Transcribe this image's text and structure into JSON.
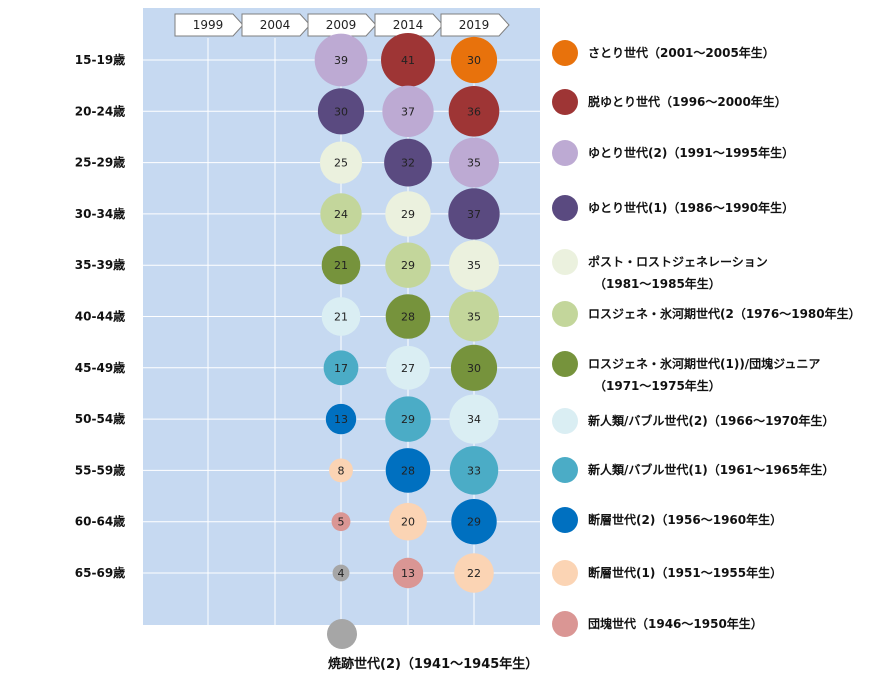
{
  "chart_data": {
    "type": "bubble",
    "x_categories": [
      "1999",
      "2004",
      "2009",
      "2014",
      "2019"
    ],
    "y_categories": [
      "15-19歳",
      "20-24歳",
      "25-29歳",
      "30-34歳",
      "35-39歳",
      "40-44歳",
      "45-49歳",
      "50-54歳",
      "55-59歳",
      "60-64歳",
      "65-69歳"
    ],
    "generations": [
      {
        "name": "さとり世代（2001～2005年生）",
        "lines": [
          "さとり世代（2001～2005年生）"
        ],
        "color": "#E8720C"
      },
      {
        "name": "脱ゆとり世代（1996～2000年生）",
        "lines": [
          "脱ゆとり世代（1996～2000年生）"
        ],
        "color": "#9E3535"
      },
      {
        "name": "ゆとり世代(2)（1991～1995年生）",
        "lines": [
          "ゆとり世代(2)（1991～1995年生）"
        ],
        "color": "#BDAAD3"
      },
      {
        "name": "ゆとり世代(1)（1986～1990年生）",
        "lines": [
          "ゆとり世代(1)（1986～1990年生）"
        ],
        "color": "#5A4A80"
      },
      {
        "name": "ポスト・ロストジェネレーション（1981～1985年生）",
        "lines": [
          "ポスト・ロストジェネレーション",
          "（1981～1985年生）"
        ],
        "color": "#EBF1DE"
      },
      {
        "name": "ロスジェネ・氷河期世代(2（1976～1980年生）",
        "lines": [
          "ロスジェネ・氷河期世代(2（1976～1980年生）"
        ],
        "color": "#C3D69B"
      },
      {
        "name": "ロスジェネ・氷河期世代(1))/団塊ジュニア（1971～1975年生）",
        "lines": [
          "ロスジェネ・氷河期世代(1))/団塊ジュニア",
          "（1971～1975年生）"
        ],
        "color": "#76933C"
      },
      {
        "name": "新人類/バブル世代(2)（1966～1970年生）",
        "lines": [
          "新人類/バブル世代(2)（1966～1970年生）"
        ],
        "color": "#DAEEF3"
      },
      {
        "name": "新人類/バブル世代(1)（1961～1965年生）",
        "lines": [
          "新人類/バブル世代(1)（1961～1965年生）"
        ],
        "color": "#4BACC6"
      },
      {
        "name": "断層世代(2)（1956～1960年生）",
        "lines": [
          "断層世代(2)（1956～1960年生）"
        ],
        "color": "#0070C0"
      },
      {
        "name": "断層世代(1)（1951～1955年生）",
        "lines": [
          "断層世代(1)（1951～1955年生）"
        ],
        "color": "#FBD4B4"
      },
      {
        "name": "団塊世代（1946～1950年生）",
        "lines": [
          "団塊世代（1946～1950年生）"
        ],
        "color": "#DA9694"
      },
      {
        "name": "焼跡世代(2)（1941～1945年生）",
        "lines": [
          "焼跡世代(2)（1941～1945年生）"
        ],
        "color": "#A6A6A6"
      }
    ],
    "series": [
      {
        "year": "2009",
        "values": [
          39,
          30,
          25,
          24,
          21,
          21,
          17,
          13,
          8,
          5,
          4
        ],
        "generation_index": [
          2,
          3,
          4,
          5,
          6,
          7,
          8,
          9,
          10,
          11,
          12
        ]
      },
      {
        "year": "2014",
        "values": [
          41,
          37,
          32,
          29,
          29,
          28,
          27,
          29,
          28,
          20,
          13
        ],
        "generation_index": [
          1,
          2,
          3,
          4,
          5,
          6,
          7,
          8,
          9,
          10,
          11
        ]
      },
      {
        "year": "2019",
        "values": [
          30,
          36,
          35,
          37,
          35,
          35,
          30,
          34,
          33,
          29,
          22
        ],
        "generation_index": [
          0,
          1,
          2,
          3,
          4,
          5,
          6,
          7,
          8,
          9,
          10
        ]
      }
    ],
    "bottom_legend_generation_index": 12,
    "plot_background": "#C6D9F1",
    "grid": true
  }
}
